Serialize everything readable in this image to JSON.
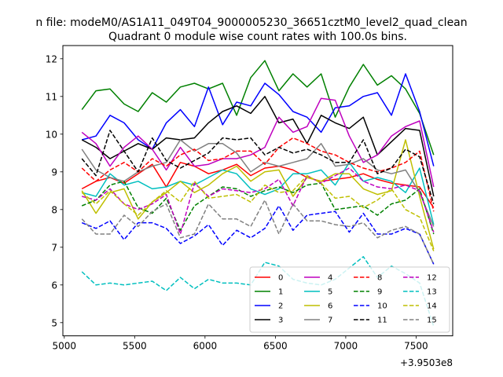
{
  "chart_data": {
    "type": "line",
    "suptitle": "n file: modeM0/AS1A11_049T04_9000005230_36651cztM0_level2_quad_clean",
    "title": "Quadrant 0 module wise count rates with 100.0s bins.",
    "x_offset_label": "+3.9503e8",
    "x": [
      5125,
      5225,
      5325,
      5425,
      5525,
      5625,
      5725,
      5825,
      5925,
      6025,
      6125,
      6225,
      6325,
      6425,
      6525,
      6625,
      6725,
      6825,
      6925,
      7025,
      7125,
      7225,
      7325,
      7425,
      7525,
      7625
    ],
    "xlim": [
      4990,
      7760
    ],
    "ylim": [
      4.65,
      12.35
    ],
    "xticks": [
      5000,
      5500,
      6000,
      6500,
      7000,
      7500
    ],
    "xtick_labels": [
      "5000",
      "5500",
      "6000",
      "6500",
      "7000",
      "7500"
    ],
    "yticks": [
      5,
      6,
      7,
      8,
      9,
      10,
      11,
      12
    ],
    "ytick_labels": [
      "5",
      "6",
      "7",
      "8",
      "9",
      "10",
      "11",
      "12"
    ],
    "legend_location": "lower-right",
    "legend_columns": 4,
    "series": [
      {
        "name": "0",
        "color": "#ff0000",
        "dash": "solid",
        "values": [
          8.55,
          8.75,
          8.85,
          8.7,
          8.95,
          9.2,
          8.6,
          9.25,
          9.15,
          8.95,
          9.05,
          9.2,
          8.9,
          9.1,
          9.15,
          9.05,
          8.85,
          8.75,
          8.8,
          8.85,
          8.95,
          8.8,
          8.7,
          8.65,
          8.6,
          8.05
        ]
      },
      {
        "name": "1",
        "color": "#008000",
        "dash": "solid",
        "values": [
          10.65,
          11.15,
          11.2,
          10.8,
          10.6,
          11.1,
          10.85,
          11.25,
          11.35,
          11.2,
          11.35,
          10.5,
          11.5,
          11.95,
          11.15,
          11.6,
          11.25,
          11.6,
          10.45,
          11.25,
          11.85,
          11.3,
          11.55,
          11.2,
          10.55,
          9.45
        ]
      },
      {
        "name": "2",
        "color": "#0000ff",
        "dash": "solid",
        "values": [
          9.85,
          9.95,
          10.5,
          10.3,
          9.85,
          9.6,
          10.3,
          10.65,
          10.2,
          11.25,
          10.25,
          10.85,
          10.75,
          11.35,
          11.05,
          10.6,
          10.45,
          10.05,
          10.7,
          10.75,
          11.0,
          11.1,
          10.5,
          11.6,
          10.6,
          9.15
        ]
      },
      {
        "name": "3",
        "color": "#000000",
        "dash": "solid",
        "values": [
          9.85,
          9.65,
          9.35,
          9.55,
          9.75,
          9.6,
          9.9,
          9.85,
          9.9,
          10.3,
          10.6,
          10.75,
          10.55,
          11.0,
          10.3,
          10.4,
          9.75,
          10.5,
          10.3,
          10.15,
          10.45,
          9.45,
          9.8,
          10.15,
          10.1,
          8.35
        ]
      },
      {
        "name": "4",
        "color": "#bf00bf",
        "dash": "solid",
        "values": [
          10.05,
          9.75,
          9.15,
          9.65,
          9.95,
          9.6,
          9.05,
          9.65,
          9.15,
          9.2,
          9.35,
          9.35,
          9.45,
          9.65,
          10.45,
          10.05,
          10.2,
          10.95,
          10.9,
          9.95,
          9.25,
          9.45,
          9.95,
          10.2,
          10.35,
          8.6
        ]
      },
      {
        "name": "5",
        "color": "#00bfbf",
        "dash": "solid",
        "values": [
          8.45,
          8.35,
          8.95,
          8.65,
          8.75,
          8.55,
          8.6,
          8.75,
          8.65,
          8.85,
          9.05,
          8.95,
          8.55,
          8.4,
          8.55,
          8.95,
          8.95,
          9.05,
          8.65,
          9.25,
          8.75,
          8.85,
          8.75,
          8.45,
          9.1,
          7.6
        ]
      },
      {
        "name": "6",
        "color": "#bfbf00",
        "dash": "solid",
        "values": [
          8.5,
          7.9,
          8.45,
          8.55,
          7.75,
          8.2,
          8.45,
          8.75,
          8.45,
          8.65,
          8.95,
          9.15,
          8.75,
          9.0,
          9.05,
          8.35,
          8.85,
          8.75,
          8.95,
          8.95,
          8.55,
          8.4,
          8.5,
          9.85,
          8.35,
          6.95
        ]
      },
      {
        "name": "7",
        "color": "#808080",
        "dash": "solid",
        "values": [
          9.6,
          9.05,
          8.85,
          8.75,
          9.0,
          9.15,
          9.25,
          9.85,
          9.55,
          9.75,
          9.75,
          9.5,
          9.0,
          9.25,
          9.15,
          9.25,
          9.35,
          9.75,
          9.15,
          9.2,
          9.35,
          9.05,
          8.95,
          9.05,
          8.45,
          7.55
        ]
      },
      {
        "name": "8",
        "color": "#ff0000",
        "dash": "dashed",
        "values": [
          9.1,
          8.75,
          9.05,
          9.25,
          9.0,
          9.35,
          9.15,
          9.45,
          9.6,
          9.3,
          9.35,
          9.55,
          9.55,
          9.2,
          9.65,
          9.9,
          9.75,
          9.55,
          9.45,
          9.25,
          9.1,
          9.0,
          9.1,
          9.25,
          9.55,
          7.95
        ]
      },
      {
        "name": "9",
        "color": "#008000",
        "dash": "dashed",
        "values": [
          8.1,
          8.25,
          8.65,
          8.75,
          8.05,
          7.9,
          8.3,
          7.45,
          8.1,
          8.35,
          8.6,
          8.55,
          8.35,
          8.5,
          8.6,
          8.45,
          8.65,
          8.7,
          8.0,
          8.05,
          8.1,
          7.85,
          8.15,
          8.25,
          8.55,
          7.35
        ]
      },
      {
        "name": "10",
        "color": "#0000ff",
        "dash": "dashed",
        "values": [
          7.65,
          7.5,
          7.7,
          7.2,
          7.65,
          7.65,
          7.5,
          7.1,
          7.3,
          7.6,
          7.05,
          7.45,
          7.25,
          7.5,
          8.1,
          7.45,
          7.85,
          7.9,
          7.95,
          7.4,
          7.9,
          7.35,
          7.35,
          7.5,
          7.35,
          6.55
        ]
      },
      {
        "name": "11",
        "color": "#000000",
        "dash": "dashed",
        "values": [
          9.35,
          8.9,
          10.1,
          9.55,
          9.0,
          9.9,
          9.3,
          9.1,
          9.3,
          9.5,
          9.9,
          9.85,
          9.9,
          9.45,
          9.65,
          9.5,
          9.6,
          9.45,
          9.25,
          9.25,
          9.85,
          8.95,
          9.1,
          9.6,
          9.4,
          8.15
        ]
      },
      {
        "name": "12",
        "color": "#bf00bf",
        "dash": "dashed",
        "values": [
          8.35,
          8.25,
          8.55,
          8.15,
          8.0,
          8.15,
          8.4,
          7.35,
          8.7,
          8.35,
          8.55,
          8.5,
          8.45,
          8.55,
          8.8,
          8.1,
          8.9,
          8.7,
          8.9,
          9.1,
          8.75,
          8.6,
          8.55,
          8.65,
          8.5,
          7.4
        ]
      },
      {
        "name": "13",
        "color": "#00bfbf",
        "dash": "dashed",
        "values": [
          6.35,
          6.0,
          6.05,
          6.0,
          6.05,
          6.1,
          5.85,
          6.2,
          5.9,
          6.15,
          6.05,
          6.05,
          6.0,
          6.6,
          6.5,
          6.15,
          6.05,
          6.0,
          6.15,
          6.45,
          6.75,
          6.2,
          6.5,
          6.3,
          6.05,
          4.9
        ]
      },
      {
        "name": "14",
        "color": "#bfbf00",
        "dash": "dashed",
        "values": [
          8.45,
          8.15,
          8.5,
          8.15,
          7.85,
          8.2,
          8.5,
          8.2,
          8.75,
          8.3,
          8.35,
          8.4,
          8.2,
          8.65,
          8.45,
          8.5,
          8.9,
          8.7,
          8.3,
          8.35,
          8.05,
          8.25,
          8.55,
          8.0,
          7.8,
          6.9
        ]
      },
      {
        "name": "15",
        "color": "#808080",
        "dash": "dashed",
        "values": [
          7.75,
          7.35,
          7.35,
          7.85,
          7.55,
          7.95,
          8.15,
          7.25,
          7.35,
          8.15,
          7.75,
          7.75,
          7.55,
          8.25,
          7.35,
          8.15,
          7.7,
          7.7,
          7.6,
          7.55,
          7.65,
          7.25,
          7.45,
          7.55,
          7.35,
          6.55
        ]
      }
    ]
  }
}
